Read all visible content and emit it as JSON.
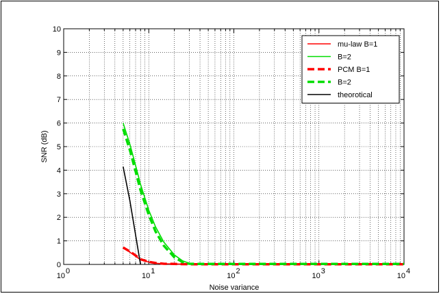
{
  "chart_data": {
    "type": "line",
    "title": "",
    "xlabel": "Noise variance",
    "ylabel": "SNR (dB)",
    "xscale": "log",
    "xlim": [
      1,
      10000
    ],
    "ylim": [
      0,
      10
    ],
    "grid": true,
    "legend_position": "top-right",
    "x_tick_labels": [
      {
        "base": "10",
        "exp": "0",
        "value": 1
      },
      {
        "base": "10",
        "exp": "1",
        "value": 10
      },
      {
        "base": "10",
        "exp": "2",
        "value": 100
      },
      {
        "base": "10",
        "exp": "3",
        "value": 1000
      },
      {
        "base": "10",
        "exp": "4",
        "value": 10000
      }
    ],
    "y_tick_labels": [
      "0",
      "1",
      "2",
      "3",
      "4",
      "5",
      "6",
      "7",
      "8",
      "9",
      "10"
    ],
    "series": [
      {
        "name": "mu-law B=1",
        "color": "#ff0000",
        "style": "solid",
        "x": [
          5,
          6,
          7,
          8,
          10,
          12,
          15,
          20,
          30,
          50,
          100,
          1000,
          10000
        ],
        "y": [
          0.7,
          0.52,
          0.35,
          0.2,
          0.1,
          0.05,
          0.03,
          0.02,
          0.01,
          0.01,
          0.01,
          0.01,
          0.01
        ]
      },
      {
        "name": "B=2",
        "color": "#00dd00",
        "style": "solid",
        "x": [
          5,
          6,
          7,
          8,
          10,
          12,
          15,
          20,
          25,
          30,
          40,
          100,
          1000,
          10000
        ],
        "y": [
          6.0,
          5.1,
          4.2,
          3.4,
          2.3,
          1.6,
          0.95,
          0.4,
          0.15,
          0.05,
          0.02,
          0.02,
          0.02,
          0.02
        ]
      },
      {
        "name": "PCM B=1",
        "color": "#ff0000",
        "style": "dashed",
        "x": [
          5,
          6,
          7,
          8,
          10,
          12,
          15,
          20,
          30,
          50,
          100,
          1000,
          10000
        ],
        "y": [
          0.72,
          0.55,
          0.38,
          0.22,
          0.11,
          0.06,
          0.03,
          0.02,
          0.01,
          0.01,
          0.01,
          0.01,
          0.01
        ]
      },
      {
        "name": "B=2",
        "color": "#00dd00",
        "style": "dashed",
        "x": [
          5,
          6,
          7,
          8,
          10,
          12,
          15,
          20,
          25,
          30,
          40,
          100,
          1000,
          10000
        ],
        "y": [
          5.75,
          4.85,
          3.95,
          3.15,
          2.1,
          1.4,
          0.8,
          0.3,
          0.1,
          0.03,
          0.02,
          0.02,
          0.02,
          0.02
        ]
      },
      {
        "name": "theorotical",
        "color": "#000000",
        "style": "solid",
        "x": [
          5,
          6,
          7,
          8
        ],
        "y": [
          4.15,
          2.7,
          1.25,
          0
        ]
      }
    ]
  }
}
